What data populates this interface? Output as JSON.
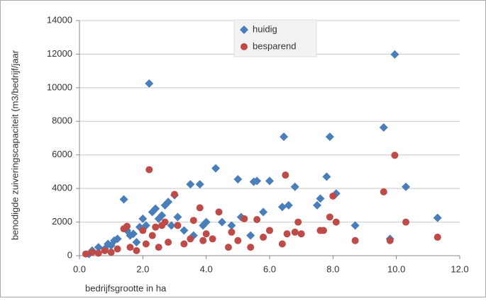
{
  "chart_data": {
    "type": "scatter",
    "x_label": "bedrijfsgrootte in ha",
    "y_label": "benodigde zuiveringscapaciteit (m3/bedrijf/jaar",
    "xlim": [
      0,
      12
    ],
    "xticks": [
      {
        "value": 0,
        "label": "0.0"
      },
      {
        "value": 2,
        "label": "2.0"
      },
      {
        "value": 4,
        "label": "4.0"
      },
      {
        "value": 6,
        "label": "6.0"
      },
      {
        "value": 8,
        "label": "8.0"
      },
      {
        "value": 10,
        "label": "10.0"
      },
      {
        "value": 12,
        "label": "12.0"
      }
    ],
    "ylim": [
      0,
      14000
    ],
    "yticks": [
      0,
      2000,
      4000,
      6000,
      8000,
      10000,
      12000,
      14000
    ],
    "grid": true,
    "legend": "top",
    "series": [
      {
        "name": "huidig",
        "color": "#4a7ebb",
        "marker": "diamond",
        "x": [
          0.3,
          0.4,
          0.6,
          0.8,
          0.9,
          1.0,
          1.1,
          1.2,
          1.4,
          1.5,
          1.6,
          1.7,
          1.8,
          1.9,
          2.0,
          2.1,
          2.2,
          2.3,
          2.4,
          2.5,
          2.6,
          2.7,
          2.8,
          2.9,
          3.0,
          3.1,
          3.3,
          3.5,
          3.6,
          3.8,
          3.9,
          4.0,
          4.3,
          4.5,
          4.8,
          5.0,
          5.1,
          5.4,
          5.5,
          5.6,
          5.8,
          6.0,
          6.4,
          6.45,
          6.6,
          6.8,
          7.5,
          7.6,
          7.8,
          7.9,
          8.1,
          8.7,
          9.6,
          9.8,
          9.95,
          10.3,
          11.3
        ],
        "values": [
          100,
          300,
          500,
          400,
          700,
          600,
          900,
          1000,
          3350,
          1500,
          1200,
          1300,
          800,
          1700,
          2200,
          1800,
          10250,
          2600,
          2800,
          2200,
          2400,
          3000,
          3200,
          1800,
          3600,
          2300,
          1500,
          4250,
          1200,
          4250,
          1800,
          2000,
          5200,
          2000,
          1800,
          4550,
          2300,
          1200,
          4400,
          4450,
          2600,
          4450,
          2900,
          7080,
          3000,
          4100,
          3000,
          3400,
          4700,
          7080,
          3700,
          1800,
          7630,
          1000,
          11980,
          4100,
          2250
        ]
      },
      {
        "name": "besparend",
        "color": "#be4b48",
        "marker": "circle",
        "x": [
          0.2,
          0.4,
          0.6,
          0.8,
          1.0,
          1.2,
          1.4,
          1.5,
          1.6,
          1.8,
          2.0,
          2.1,
          2.2,
          2.3,
          2.4,
          2.5,
          2.6,
          2.7,
          2.8,
          3.0,
          3.1,
          3.3,
          3.5,
          3.6,
          3.8,
          3.9,
          4.0,
          4.2,
          4.4,
          4.7,
          4.8,
          5.0,
          5.2,
          5.4,
          5.6,
          5.8,
          6.0,
          6.4,
          6.5,
          6.55,
          6.8,
          6.9,
          7.0,
          7.6,
          7.7,
          7.9,
          8.0,
          8.1,
          8.7,
          9.6,
          9.8,
          9.95,
          10.3,
          11.3
        ],
        "values": [
          100,
          200,
          150,
          300,
          200,
          400,
          1600,
          1750,
          500,
          300,
          1500,
          700,
          5120,
          1200,
          1700,
          500,
          1800,
          2000,
          800,
          3650,
          1800,
          700,
          1000,
          2100,
          2850,
          900,
          1300,
          1000,
          2600,
          500,
          1400,
          900,
          2200,
          500,
          2150,
          1100,
          1500,
          700,
          4800,
          1300,
          1400,
          2000,
          1300,
          1500,
          1500,
          2300,
          3550,
          2000,
          900,
          3800,
          900,
          5980,
          2000,
          1100
        ]
      }
    ]
  }
}
